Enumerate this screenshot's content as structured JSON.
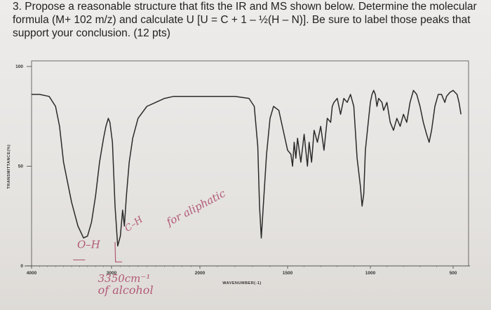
{
  "question": {
    "line1": "3. Propose a reasonable structure that fits the IR and MS shown below. Determine the molecular",
    "line2": "formula (M+ 102 m/z) and calculate U [U = C + 1 – ½(H – N)]. Be sure to label those peaks that",
    "line3": "support your conclusion. (12 pts)"
  },
  "chart_data": {
    "type": "line",
    "title": "",
    "xlabel": "WAVENUMBER(-1)",
    "ylabel": "TRANSMITTANCE(%)",
    "xlim": [
      4000,
      450
    ],
    "ylim": [
      0,
      100
    ],
    "x_ticks": [
      "4000",
      "3000",
      "2000",
      "1500",
      "1000",
      "500"
    ],
    "y_ticks": [
      "100",
      "50",
      "0"
    ],
    "grid": false,
    "series": [
      {
        "points": [
          [
            4000,
            86
          ],
          [
            3900,
            86
          ],
          [
            3780,
            85
          ],
          [
            3700,
            80
          ],
          [
            3650,
            70
          ],
          [
            3600,
            52
          ],
          [
            3500,
            32
          ],
          [
            3420,
            20
          ],
          [
            3350,
            14
          ],
          [
            3300,
            15
          ],
          [
            3250,
            22
          ],
          [
            3200,
            35
          ],
          [
            3150,
            52
          ],
          [
            3100,
            64
          ],
          [
            3070,
            70
          ],
          [
            3040,
            74
          ],
          [
            3020,
            72
          ],
          [
            2990,
            62
          ],
          [
            2960,
            30
          ],
          [
            2930,
            10
          ],
          [
            2900,
            15
          ],
          [
            2875,
            28
          ],
          [
            2855,
            20
          ],
          [
            2830,
            36
          ],
          [
            2800,
            52
          ],
          [
            2760,
            64
          ],
          [
            2700,
            74
          ],
          [
            2600,
            80
          ],
          [
            2500,
            82
          ],
          [
            2400,
            84
          ],
          [
            2300,
            85
          ],
          [
            2200,
            85
          ],
          [
            2100,
            85
          ],
          [
            2000,
            85
          ],
          [
            1900,
            85
          ],
          [
            1800,
            85
          ],
          [
            1720,
            84
          ],
          [
            1690,
            80
          ],
          [
            1670,
            60
          ],
          [
            1660,
            30
          ],
          [
            1650,
            14
          ],
          [
            1640,
            28
          ],
          [
            1620,
            56
          ],
          [
            1600,
            74
          ],
          [
            1580,
            80
          ],
          [
            1550,
            78
          ],
          [
            1530,
            70
          ],
          [
            1500,
            58
          ],
          [
            1480,
            56
          ],
          [
            1470,
            50
          ],
          [
            1460,
            62
          ],
          [
            1450,
            54
          ],
          [
            1440,
            64
          ],
          [
            1420,
            52
          ],
          [
            1400,
            66
          ],
          [
            1380,
            50
          ],
          [
            1370,
            62
          ],
          [
            1355,
            52
          ],
          [
            1340,
            68
          ],
          [
            1320,
            62
          ],
          [
            1300,
            70
          ],
          [
            1280,
            58
          ],
          [
            1260,
            74
          ],
          [
            1240,
            72
          ],
          [
            1230,
            80
          ],
          [
            1220,
            82
          ],
          [
            1200,
            84
          ],
          [
            1180,
            76
          ],
          [
            1160,
            84
          ],
          [
            1140,
            82
          ],
          [
            1120,
            86
          ],
          [
            1100,
            80
          ],
          [
            1080,
            54
          ],
          [
            1060,
            40
          ],
          [
            1050,
            30
          ],
          [
            1040,
            36
          ],
          [
            1030,
            58
          ],
          [
            1010,
            74
          ],
          [
            1000,
            82
          ],
          [
            990,
            86
          ],
          [
            980,
            88
          ],
          [
            970,
            86
          ],
          [
            960,
            80
          ],
          [
            950,
            84
          ],
          [
            930,
            82
          ],
          [
            920,
            78
          ],
          [
            900,
            82
          ],
          [
            880,
            72
          ],
          [
            860,
            68
          ],
          [
            840,
            74
          ],
          [
            820,
            70
          ],
          [
            800,
            76
          ],
          [
            780,
            72
          ],
          [
            760,
            82
          ],
          [
            740,
            88
          ],
          [
            720,
            86
          ],
          [
            700,
            80
          ],
          [
            680,
            72
          ],
          [
            660,
            66
          ],
          [
            645,
            62
          ],
          [
            630,
            68
          ],
          [
            610,
            80
          ],
          [
            590,
            86
          ],
          [
            570,
            86
          ],
          [
            560,
            84
          ],
          [
            550,
            82
          ],
          [
            540,
            85
          ],
          [
            520,
            87
          ],
          [
            500,
            88
          ],
          [
            490,
            87
          ],
          [
            480,
            86
          ],
          [
            470,
            82
          ],
          [
            460,
            76
          ]
        ]
      }
    ],
    "annotations": [
      {
        "text": "O–H",
        "x": 3430,
        "y": 9
      },
      {
        "text": "C–H",
        "x": 2820,
        "y": 17
      },
      {
        "text": "for aliphatic",
        "x": 2350,
        "y": 20
      },
      {
        "text": "3350cm⁻¹",
        "x": 3170,
        "y": -8
      },
      {
        "text": "of alcohol",
        "x": 3170,
        "y": -14
      }
    ]
  }
}
